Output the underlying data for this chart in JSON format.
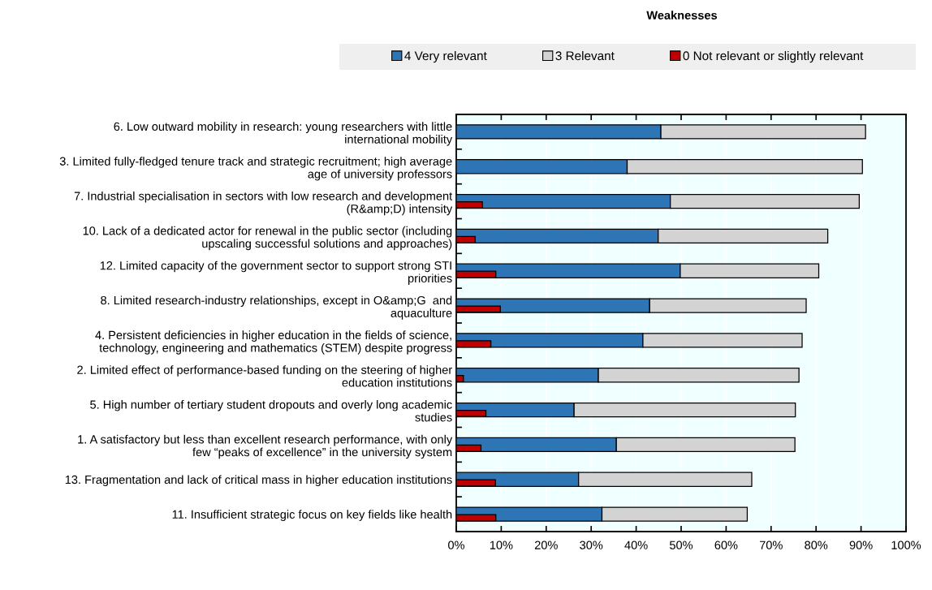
{
  "chart_data": {
    "type": "bar",
    "orientation": "horizontal",
    "title": "Weaknesses",
    "categories": [
      "6. Low outward mobility in research: young researchers with little\ninternational mobility",
      "3. Limited fully-fledged tenure track and strategic recruitment; high average\nage of university professors",
      "7. Industrial specialisation in sectors with low research and development\n(R&amp;D) intensity",
      "10. Lack of a dedicated actor for renewal in the public sector (including\nupscaling successful solutions and approaches)",
      "12. Limited capacity of the government sector to support strong STI\npriorities",
      "8. Limited research-industry relationships, except in O&amp;G  and\naquaculture",
      "4. Persistent deficiencies in higher education in the fields of science,\ntechnology, engineering and mathematics (STEM) despite progress",
      "2. Limited effect of performance-based funding on the steering of higher\neducation institutions",
      "5. High number of tertiary student dropouts and overly long academic\nstudies",
      "1. A satisfactory but less than excellent research performance, with only\nfew “peaks of excellence” in the university system",
      "13. Fragmentation and lack of critical mass in higher education institutions",
      "11. Insufficient strategic focus on key fields like health"
    ],
    "series": [
      {
        "name": "4 Very relevant",
        "color": "#2e75b6",
        "values": [
          45.5,
          38.0,
          47.6,
          44.9,
          49.8,
          43.0,
          41.5,
          31.6,
          26.2,
          35.6,
          27.2,
          32.4
        ],
        "base": [
          0,
          0,
          0,
          0,
          0,
          0,
          0,
          0,
          0,
          0,
          0,
          0
        ]
      },
      {
        "name": "3 Relevant",
        "color": "#d3d3d3",
        "values": [
          45.5,
          52.3,
          42.0,
          37.7,
          30.8,
          34.8,
          35.4,
          44.6,
          49.2,
          39.7,
          38.5,
          32.3
        ],
        "base": [
          45.5,
          38.0,
          47.6,
          44.9,
          49.8,
          43.0,
          41.5,
          31.6,
          26.2,
          35.6,
          27.2,
          32.4
        ]
      },
      {
        "name": "0 Not relevant or slightly relevant",
        "color": "#c00000",
        "values": [
          null,
          null,
          5.8,
          4.2,
          8.8,
          9.8,
          7.7,
          1.6,
          6.6,
          5.5,
          8.7,
          8.8
        ],
        "base": [
          null,
          null,
          0,
          0,
          0,
          0,
          0,
          0,
          0,
          0,
          0,
          0
        ]
      }
    ],
    "xlim": [
      0,
      100
    ],
    "xticks": [
      {
        "value": 0,
        "label": "0%"
      },
      {
        "value": 10,
        "label": "10%"
      },
      {
        "value": 20,
        "label": "20%"
      },
      {
        "value": 30,
        "label": "30%"
      },
      {
        "value": 40,
        "label": "40%"
      },
      {
        "value": 50,
        "label": "50%"
      },
      {
        "value": 60,
        "label": "60%"
      },
      {
        "value": 70,
        "label": "70%"
      },
      {
        "value": 80,
        "label": "80%"
      },
      {
        "value": 90,
        "label": "90%"
      },
      {
        "value": 100,
        "label": "100%"
      }
    ],
    "grid": "x",
    "legend": "top"
  }
}
